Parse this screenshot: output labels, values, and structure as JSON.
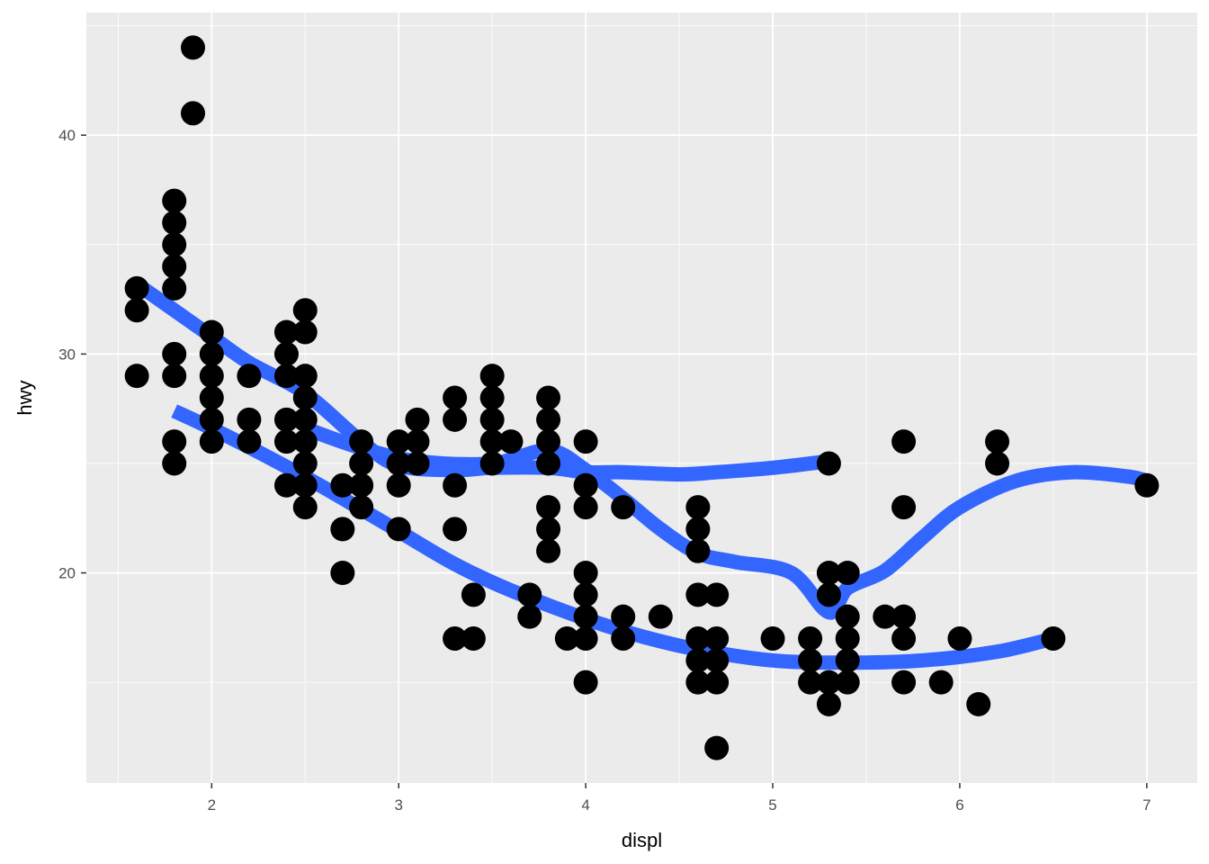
{
  "chart_data": {
    "type": "scatter",
    "title": "",
    "xlabel": "displ",
    "ylabel": "hwy",
    "xlim": [
      1.33,
      7.27
    ],
    "ylim": [
      10.4,
      45.6
    ],
    "x_ticks": [
      2,
      3,
      4,
      5,
      6,
      7
    ],
    "y_ticks": [
      20,
      30,
      40
    ],
    "x_tick_labels": [
      "2",
      "3",
      "4",
      "5",
      "6",
      "7"
    ],
    "y_tick_labels": [
      "20",
      "30",
      "40"
    ],
    "grid": true,
    "legend": "none",
    "colors": {
      "panel": "#EBEBEB",
      "grid": "#FFFFFF",
      "point": "#000000",
      "smooth": "#3366FF",
      "tick": "#333333"
    },
    "points": [
      [
        1.6,
        33
      ],
      [
        1.6,
        32
      ],
      [
        1.6,
        29
      ],
      [
        1.8,
        37
      ],
      [
        1.8,
        36
      ],
      [
        1.8,
        35
      ],
      [
        1.8,
        34
      ],
      [
        1.8,
        33
      ],
      [
        1.8,
        30
      ],
      [
        1.8,
        29
      ],
      [
        1.8,
        26
      ],
      [
        1.8,
        25
      ],
      [
        1.9,
        44
      ],
      [
        1.9,
        41
      ],
      [
        2.0,
        31
      ],
      [
        2.0,
        30
      ],
      [
        2.0,
        29
      ],
      [
        2.0,
        28
      ],
      [
        2.0,
        27
      ],
      [
        2.0,
        26
      ],
      [
        2.2,
        29
      ],
      [
        2.2,
        27
      ],
      [
        2.2,
        26
      ],
      [
        2.4,
        31
      ],
      [
        2.4,
        30
      ],
      [
        2.4,
        29
      ],
      [
        2.4,
        27
      ],
      [
        2.4,
        26
      ],
      [
        2.4,
        24
      ],
      [
        2.5,
        32
      ],
      [
        2.5,
        31
      ],
      [
        2.5,
        29
      ],
      [
        2.5,
        28
      ],
      [
        2.5,
        27
      ],
      [
        2.5,
        26
      ],
      [
        2.5,
        25
      ],
      [
        2.5,
        24
      ],
      [
        2.5,
        23
      ],
      [
        2.7,
        24
      ],
      [
        2.7,
        22
      ],
      [
        2.7,
        20
      ],
      [
        2.8,
        26
      ],
      [
        2.8,
        25
      ],
      [
        2.8,
        24
      ],
      [
        2.8,
        23
      ],
      [
        3.0,
        26
      ],
      [
        3.0,
        25
      ],
      [
        3.0,
        24
      ],
      [
        3.0,
        22
      ],
      [
        3.1,
        27
      ],
      [
        3.1,
        26
      ],
      [
        3.1,
        25
      ],
      [
        3.3,
        28
      ],
      [
        3.3,
        27
      ],
      [
        3.3,
        24
      ],
      [
        3.3,
        22
      ],
      [
        3.3,
        17
      ],
      [
        3.4,
        19
      ],
      [
        3.4,
        17
      ],
      [
        3.5,
        29
      ],
      [
        3.5,
        28
      ],
      [
        3.5,
        27
      ],
      [
        3.5,
        26
      ],
      [
        3.5,
        25
      ],
      [
        3.6,
        26
      ],
      [
        3.7,
        19
      ],
      [
        3.7,
        18
      ],
      [
        3.8,
        28
      ],
      [
        3.8,
        27
      ],
      [
        3.8,
        26
      ],
      [
        3.8,
        25
      ],
      [
        3.8,
        23
      ],
      [
        3.8,
        22
      ],
      [
        3.8,
        21
      ],
      [
        3.9,
        17
      ],
      [
        4.0,
        26
      ],
      [
        4.0,
        24
      ],
      [
        4.0,
        23
      ],
      [
        4.0,
        20
      ],
      [
        4.0,
        19
      ],
      [
        4.0,
        18
      ],
      [
        4.0,
        17
      ],
      [
        4.0,
        15
      ],
      [
        4.2,
        23
      ],
      [
        4.2,
        18
      ],
      [
        4.2,
        17
      ],
      [
        4.4,
        18
      ],
      [
        4.6,
        23
      ],
      [
        4.6,
        22
      ],
      [
        4.6,
        21
      ],
      [
        4.6,
        19
      ],
      [
        4.6,
        17
      ],
      [
        4.6,
        16
      ],
      [
        4.6,
        15
      ],
      [
        4.7,
        19
      ],
      [
        4.7,
        17
      ],
      [
        4.7,
        16
      ],
      [
        4.7,
        15
      ],
      [
        4.7,
        12
      ],
      [
        5.0,
        17
      ],
      [
        5.2,
        17
      ],
      [
        5.2,
        16
      ],
      [
        5.2,
        15
      ],
      [
        5.3,
        25
      ],
      [
        5.3,
        20
      ],
      [
        5.3,
        19
      ],
      [
        5.3,
        15
      ],
      [
        5.3,
        14
      ],
      [
        5.4,
        20
      ],
      [
        5.4,
        18
      ],
      [
        5.4,
        17
      ],
      [
        5.4,
        16
      ],
      [
        5.4,
        15
      ],
      [
        5.6,
        18
      ],
      [
        5.7,
        26
      ],
      [
        5.7,
        23
      ],
      [
        5.7,
        18
      ],
      [
        5.7,
        17
      ],
      [
        5.7,
        15
      ],
      [
        5.9,
        15
      ],
      [
        6.0,
        17
      ],
      [
        6.1,
        14
      ],
      [
        6.2,
        26
      ],
      [
        6.2,
        25
      ],
      [
        6.5,
        17
      ],
      [
        7.0,
        24
      ]
    ],
    "smooth_lines": [
      {
        "x": [
          1.6,
          1.8,
          2.0,
          2.2,
          2.5,
          2.8,
          3.0,
          3.3,
          3.5,
          3.8,
          4.0,
          4.2,
          4.5,
          4.7,
          5.0,
          5.3
        ],
        "y": [
          33.2,
          32.0,
          30.8,
          29.6,
          28.2,
          26.0,
          24.9,
          24.7,
          24.8,
          24.8,
          24.6,
          24.6,
          24.5,
          24.6,
          24.8,
          25.1
        ]
      },
      {
        "x": [
          1.8,
          2.0,
          2.3,
          2.6,
          3.0,
          3.3,
          3.6,
          4.0,
          4.3,
          4.6,
          5.0,
          5.4,
          5.8,
          6.2,
          6.5
        ],
        "y": [
          27.4,
          26.6,
          25.3,
          23.9,
          21.9,
          20.4,
          19.2,
          17.9,
          17.1,
          16.5,
          16.0,
          15.9,
          16.0,
          16.4,
          17.0
        ]
      },
      {
        "x": [
          2.5,
          2.8,
          3.1,
          3.5,
          3.8,
          4.0,
          4.2,
          4.4,
          4.6,
          4.8,
          5.1,
          5.3,
          5.4,
          5.6,
          5.8,
          6.0,
          6.3,
          6.6,
          6.9,
          7.0
        ],
        "y": [
          26.6,
          25.7,
          25.1,
          25.0,
          25.6,
          24.7,
          23.4,
          22.0,
          20.9,
          20.5,
          20.0,
          18.2,
          19.3,
          20.1,
          21.6,
          23.0,
          24.2,
          24.6,
          24.4,
          24.2
        ]
      }
    ]
  }
}
